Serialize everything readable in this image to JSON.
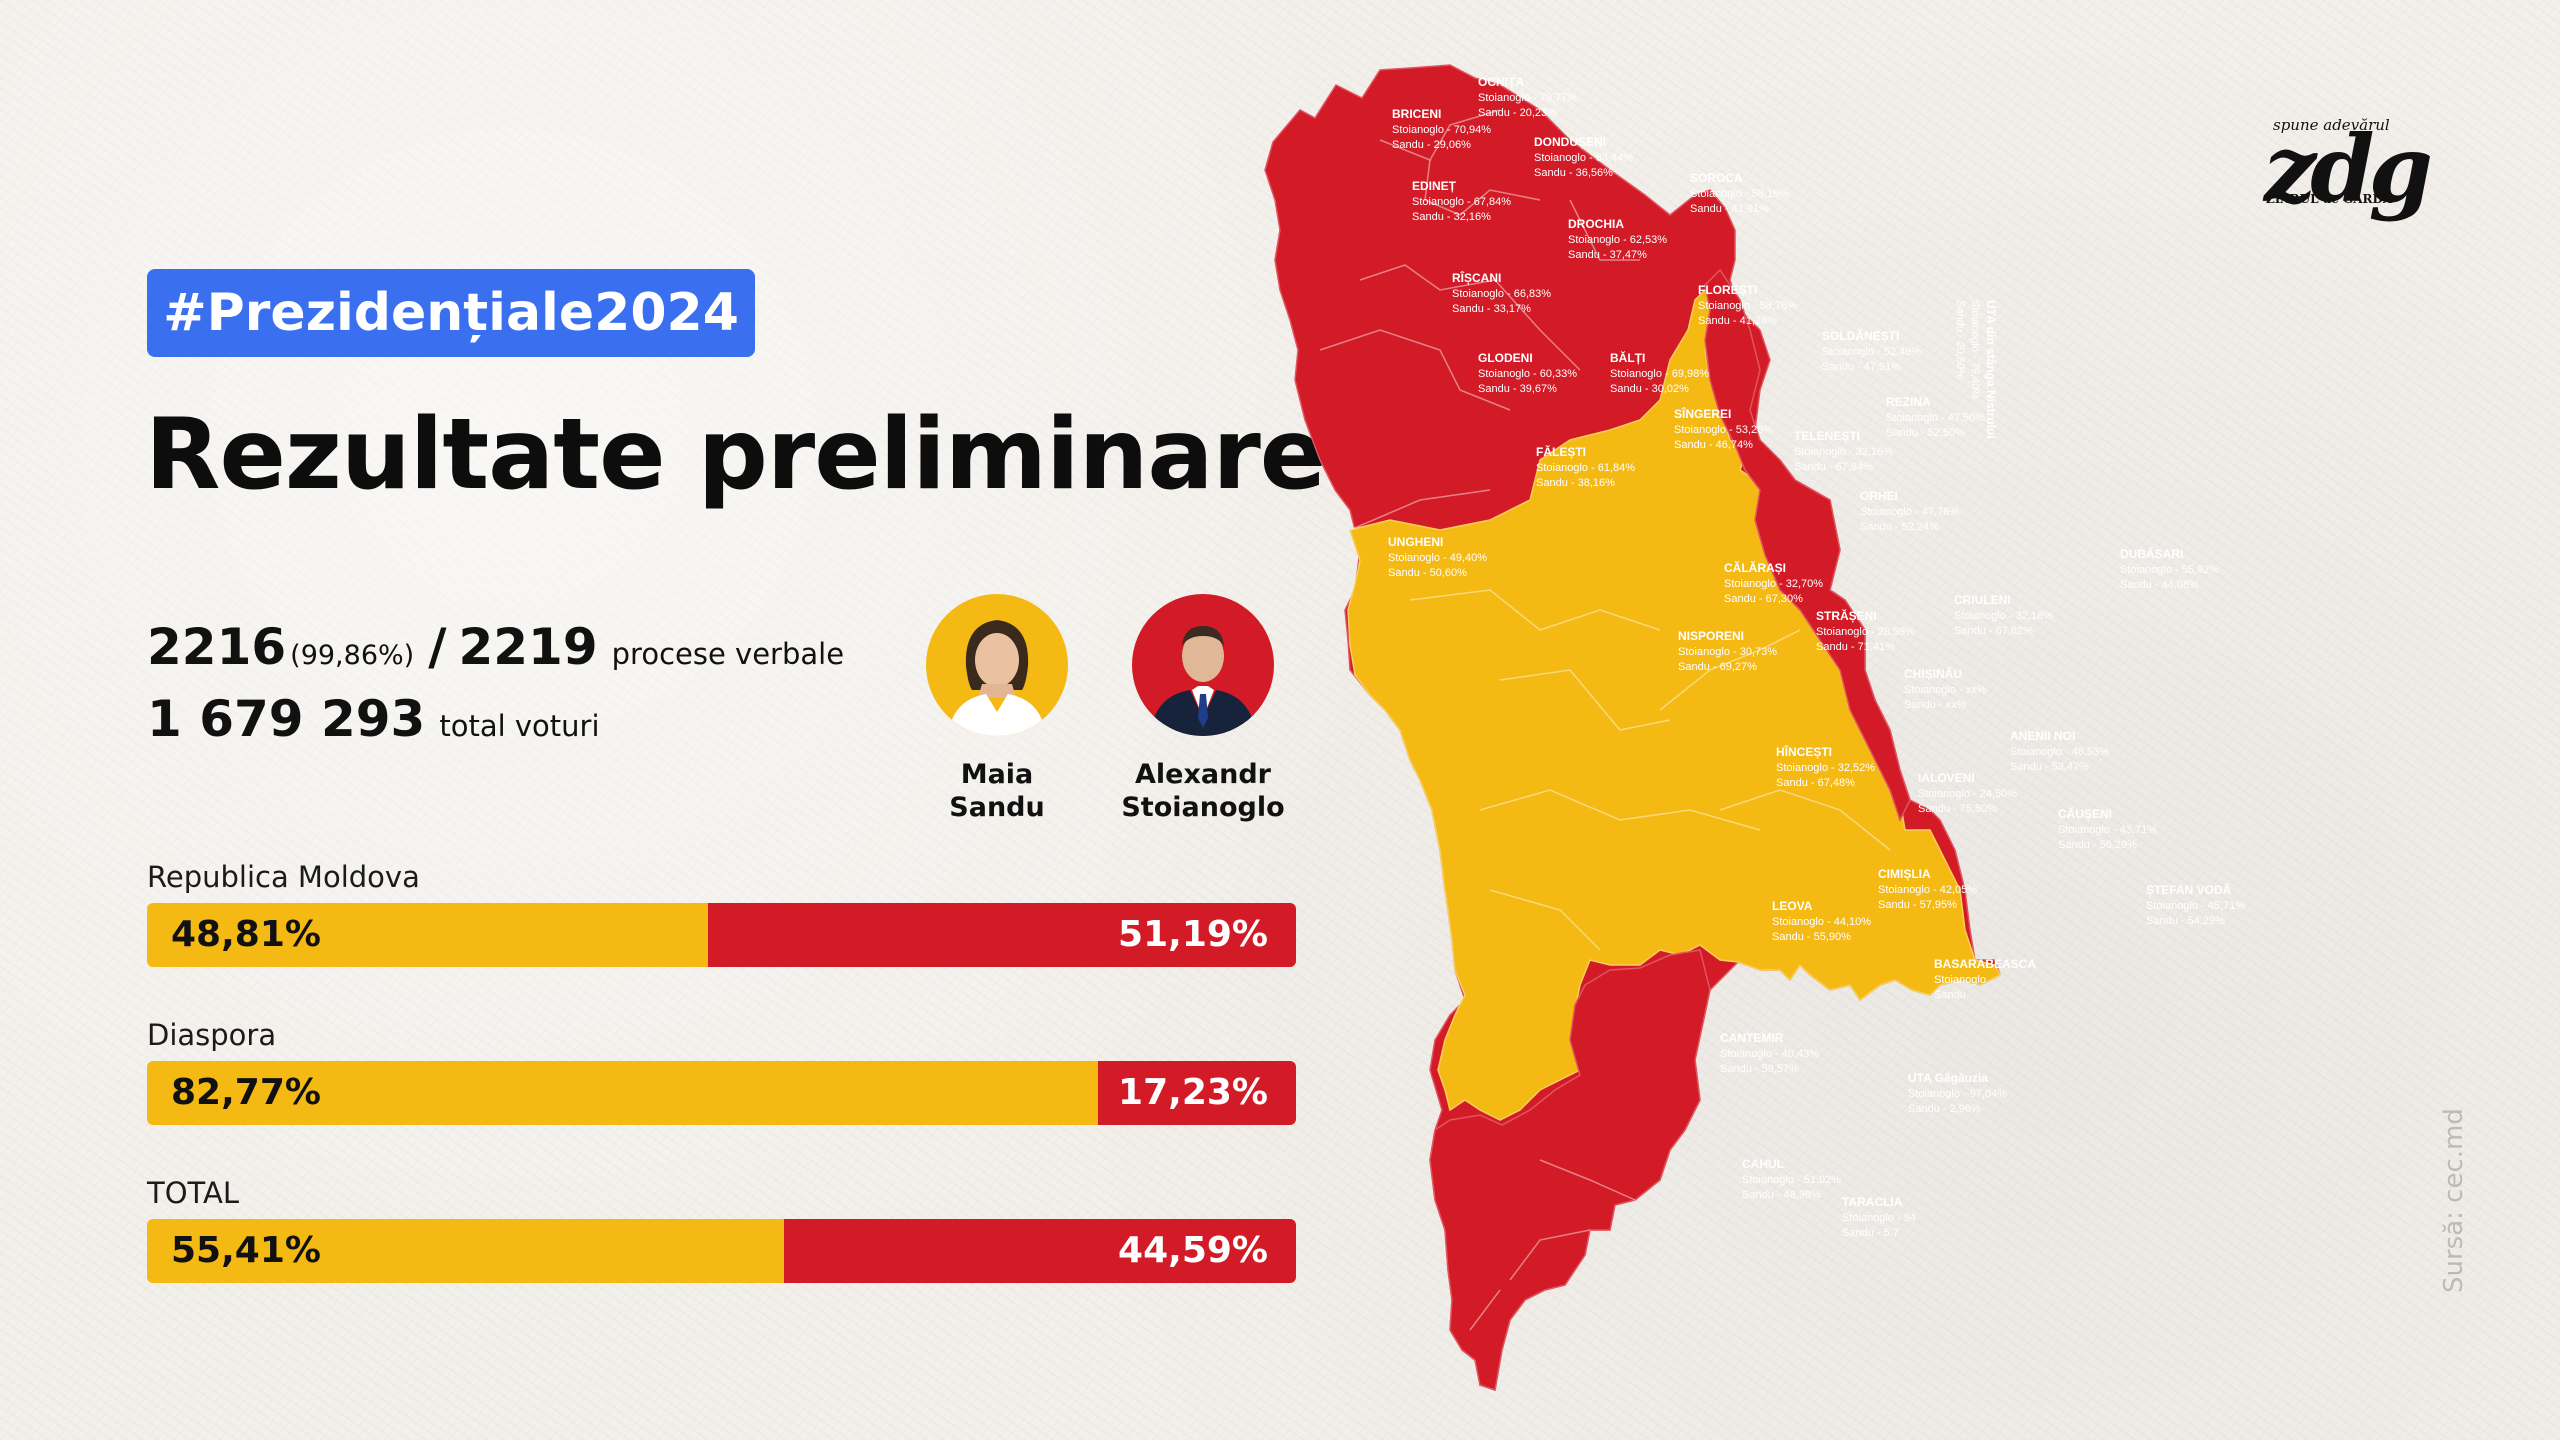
{
  "hashtag": "#Prezidențiale2024",
  "title": "Rezultate preliminare",
  "stats": {
    "processed": "2216",
    "processed_pct": "(99,86%)",
    "total_pv": "2219",
    "pv_label": "procese verbale",
    "total_votes": "1 679 293",
    "votes_label": "total voturi"
  },
  "candidates": [
    {
      "first": "Maia",
      "last": "Sandu",
      "color": "#f5b914"
    },
    {
      "first": "Alexandr",
      "last": "Stoianoglo",
      "color": "#d21b27"
    }
  ],
  "results": [
    {
      "label": "Republica Moldova",
      "sandu": "48,81%",
      "stoianoglo": "51,19%",
      "sandu_share": 48.81
    },
    {
      "label": "Diaspora",
      "sandu": "82,77%",
      "stoianoglo": "17,23%",
      "sandu_share": 82.77
    },
    {
      "label": "TOTAL",
      "sandu": "55,41%",
      "stoianoglo": "44,59%",
      "sandu_share": 55.41
    }
  ],
  "logo": {
    "tagline": "spune adevărul",
    "name": "zdg",
    "subtitle": "ZIARUL de GARDĂ"
  },
  "source": "Sursă: cec.md",
  "colors": {
    "sandu": "#f5b914",
    "stoianoglo": "#d21b27",
    "accent": "#3a6ff0"
  },
  "map_regions": [
    {
      "name": "OCNIȚA",
      "stoianoglo": "Stoianoglo - 79,77%",
      "sandu": "Sandu - 20,23%",
      "winner": "stoianoglo"
    },
    {
      "name": "BRICENI",
      "stoianoglo": "Stoianoglo - 70,94%",
      "sandu": "Sandu - 29,06%",
      "winner": "stoianoglo"
    },
    {
      "name": "DONDUȘENI",
      "stoianoglo": "Stoianoglo - 63,44%",
      "sandu": "Sandu - 36,56%",
      "winner": "stoianoglo"
    },
    {
      "name": "EDINEȚ",
      "stoianoglo": "Stoianoglo - 67,84%",
      "sandu": "Sandu - 32,16%",
      "winner": "stoianoglo"
    },
    {
      "name": "SOROCA",
      "stoianoglo": "Stoianoglo - 58,19%",
      "sandu": "Sandu - 41,81%",
      "winner": "stoianoglo"
    },
    {
      "name": "DROCHIA",
      "stoianoglo": "Stoianoglo - 62,53%",
      "sandu": "Sandu - 37,47%",
      "winner": "stoianoglo"
    },
    {
      "name": "RÎȘCANI",
      "stoianoglo": "Stoianoglo - 66,83%",
      "sandu": "Sandu - 33,17%",
      "winner": "stoianoglo"
    },
    {
      "name": "FLOREȘTI",
      "stoianoglo": "Stoianoglo - 58,76%",
      "sandu": "Sandu - 41,24%",
      "winner": "stoianoglo"
    },
    {
      "name": "GLODENI",
      "stoianoglo": "Stoianoglo - 60,33%",
      "sandu": "Sandu - 39,67%",
      "winner": "stoianoglo"
    },
    {
      "name": "BĂLȚI",
      "stoianoglo": "Stoianoglo - 69,98%",
      "sandu": "Sandu - 30,02%",
      "winner": "stoianoglo"
    },
    {
      "name": "SOLDĂNEȘTI",
      "stoianoglo": "Stoianoglo - 52,49%",
      "sandu": "Sandu - 47,51%",
      "winner": "stoianoglo"
    },
    {
      "name": "SÎNGEREI",
      "stoianoglo": "Stoianoglo - 53,26%",
      "sandu": "Sandu - 46,74%",
      "winner": "stoianoglo"
    },
    {
      "name": "FĂLEȘTI",
      "stoianoglo": "Stoianoglo - 61,84%",
      "sandu": "Sandu - 38,16%",
      "winner": "stoianoglo"
    },
    {
      "name": "REZINA",
      "stoianoglo": "Stoianoglo - 47,50%",
      "sandu": "Sandu - 52,50%",
      "winner": "sandu"
    },
    {
      "name": "TELENEȘTI",
      "stoianoglo": "Stoianoglo - 32,16%",
      "sandu": "Sandu - 67,84%",
      "winner": "sandu"
    },
    {
      "name": "ORHEI",
      "stoianoglo": "Stoianoglo - 47,76%",
      "sandu": "Sandu - 52,24%",
      "winner": "sandu"
    },
    {
      "name": "UNGHENI",
      "stoianoglo": "Stoianoglo - 49,40%",
      "sandu": "Sandu - 50,60%",
      "winner": "sandu"
    },
    {
      "name": "DUBĂSARI",
      "stoianoglo": "Stoianoglo - 55,92%",
      "sandu": "Sandu - 44,08%",
      "winner": "stoianoglo"
    },
    {
      "name": "CĂLĂRAȘI",
      "stoianoglo": "Stoianoglo - 32,70%",
      "sandu": "Sandu - 67,30%",
      "winner": "sandu"
    },
    {
      "name": "CRIULENI",
      "stoianoglo": "Stoianoglo - 32,18%",
      "sandu": "Sandu - 67,82%",
      "winner": "sandu"
    },
    {
      "name": "STRĂȘENI",
      "stoianoglo": "Stoianoglo - 28,59%",
      "sandu": "Sandu - 71,41%",
      "winner": "sandu"
    },
    {
      "name": "NISPORENI",
      "stoianoglo": "Stoianoglo - 30,73%",
      "sandu": "Sandu - 69,27%",
      "winner": "sandu"
    },
    {
      "name": "CHIȘINĂU",
      "stoianoglo": "Stoianoglo - xx%",
      "sandu": "Sandu - xx%",
      "winner": "sandu"
    },
    {
      "name": "ANENII NOI",
      "stoianoglo": "Stoianoglo - 46,53%",
      "sandu": "Sandu - 53,47%",
      "winner": "sandu"
    },
    {
      "name": "HÎNCEȘTI",
      "stoianoglo": "Stoianoglo - 32,52%",
      "sandu": "Sandu - 67,48%",
      "winner": "sandu"
    },
    {
      "name": "IALOVENI",
      "stoianoglo": "Stoianoglo - 24,50%",
      "sandu": "Sandu - 75,50%",
      "winner": "sandu"
    },
    {
      "name": "CĂUȘENI",
      "stoianoglo": "Stoianoglo - 43,71%",
      "sandu": "Sandu - 56,29%",
      "winner": "sandu"
    },
    {
      "name": "CIMIȘLIA",
      "stoianoglo": "Stoianoglo - 42,05%",
      "sandu": "Sandu - 57,95%",
      "winner": "sandu"
    },
    {
      "name": "ȘTEFAN VODĂ",
      "stoianoglo": "Stoianoglo - 45,71%",
      "sandu": "Sandu - 54,29%",
      "winner": "sandu"
    },
    {
      "name": "LEOVA",
      "stoianoglo": "Stoianoglo - 44,10%",
      "sandu": "Sandu - 55,90%",
      "winner": "sandu"
    },
    {
      "name": "BASARABEASCA",
      "stoianoglo": "Stoianoglo",
      "sandu": "Sandu",
      "winner": "stoianoglo"
    },
    {
      "name": "CANTEMIR",
      "stoianoglo": "Stoianoglo - 40,43%",
      "sandu": "Sandu - 59,57%",
      "winner": "sandu"
    },
    {
      "name": "UTA Găgăuzia",
      "stoianoglo": "Stoianoglo - 97,04%",
      "sandu": "Sandu - 2,96%",
      "winner": "stoianoglo"
    },
    {
      "name": "CAHUL",
      "stoianoglo": "Stoianoglo - 51,02%",
      "sandu": "Sandu - 48,98%",
      "winner": "stoianoglo"
    },
    {
      "name": "TARACLIA",
      "stoianoglo": "Stoianoglo - 94",
      "sandu": "Sandu - 5,7",
      "winner": "stoianoglo"
    },
    {
      "name": "UTA din stânga Nistrului",
      "stoianoglo": "Stoianoglo - 79,40%",
      "sandu": "Sandu - 20,60%",
      "winner": "stoianoglo"
    }
  ]
}
